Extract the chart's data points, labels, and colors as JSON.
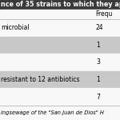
{
  "title": "nce of 35 strains to which they applied",
  "header_label": "Frequ",
  "rows": [
    {
      "label": "microbial",
      "value": "24",
      "shaded": false
    },
    {
      "label": "",
      "value": "1",
      "shaded": true
    },
    {
      "label": "",
      "value": "3",
      "shaded": false
    },
    {
      "label": "resistant to 12 antibiotics",
      "value": "1",
      "shaded": true
    },
    {
      "label": "",
      "value": "7",
      "shaded": false
    }
  ],
  "footer": "ingsewage of the \"San Juan de Dios\" H",
  "bg_color": "#f0f0f0",
  "white_color": "#f8f8f8",
  "shaded_color": "#c8c8c8",
  "title_bg": "#3a3a3a",
  "title_color": "#ffffff",
  "font_size": 5.5,
  "title_font_size": 5.8,
  "footer_font_size": 4.8
}
